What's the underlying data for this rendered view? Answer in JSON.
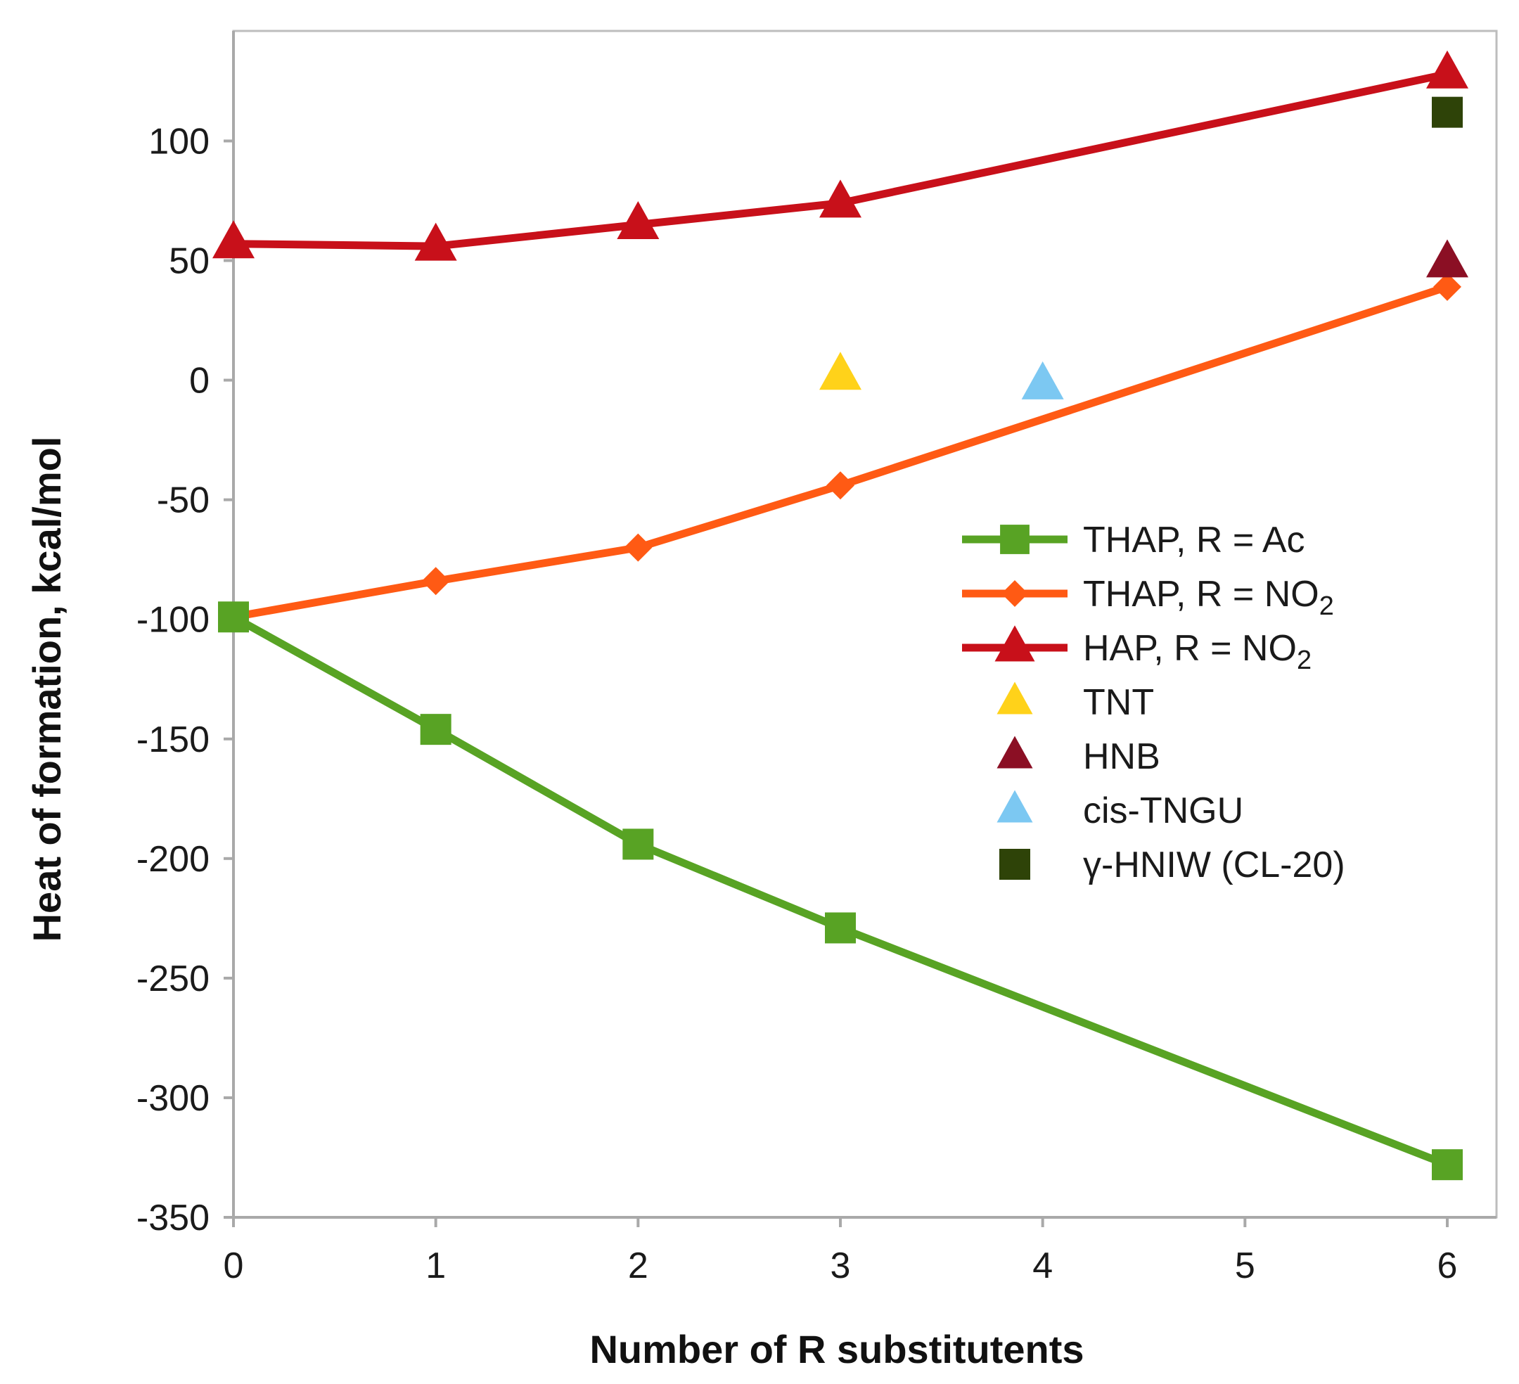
{
  "chart_data": {
    "type": "line",
    "title": "",
    "xlabel": "Number of R substitutents",
    "ylabel": "Heat of formation, kcal/mol",
    "xlim": [
      0,
      6.25
    ],
    "ylim": [
      -350,
      146
    ],
    "xticks": [
      "0",
      "1",
      "2",
      "3",
      "4",
      "5",
      "6"
    ],
    "yticks": [
      "100",
      "50",
      "0",
      "-50",
      "-100",
      "-150",
      "-200",
      "-250",
      "-300",
      "-350"
    ],
    "legend_position": "center-right",
    "grid": false,
    "series": [
      {
        "name": "THAP, R = Ac",
        "marker": "square",
        "line": true,
        "color": "#58A324",
        "points": [
          [
            0,
            -99
          ],
          [
            1,
            -146
          ],
          [
            2,
            -194
          ],
          [
            3,
            -229
          ],
          [
            6,
            -328
          ]
        ]
      },
      {
        "name": "THAP, R = NO2",
        "name_main": "THAP, R = NO",
        "name_sub": "2",
        "marker": "diamond",
        "line": true,
        "color": "#FF5A14",
        "points": [
          [
            0,
            -99
          ],
          [
            1,
            -84
          ],
          [
            2,
            -70
          ],
          [
            3,
            -44
          ],
          [
            6,
            39
          ]
        ]
      },
      {
        "name": "HAP, R = NO2",
        "name_main": "HAP, R = NO",
        "name_sub": "2",
        "marker": "triangle",
        "line": true,
        "color": "#C8101A",
        "points": [
          [
            0,
            57
          ],
          [
            1,
            56
          ],
          [
            2,
            65
          ],
          [
            3,
            74
          ],
          [
            6,
            128
          ]
        ]
      },
      {
        "name": "TNT",
        "marker": "triangle",
        "line": false,
        "color": "#FFD21A",
        "points": [
          [
            3,
            2
          ]
        ]
      },
      {
        "name": "HNB",
        "marker": "triangle",
        "line": false,
        "color": "#8B0F24",
        "points": [
          [
            6,
            49
          ]
        ]
      },
      {
        "name": "cis-TNGU",
        "marker": "triangle",
        "line": false,
        "color": "#7CC8F2",
        "points": [
          [
            4,
            -2
          ]
        ]
      },
      {
        "name": "γ-HNIW (CL-20)",
        "marker": "square",
        "line": false,
        "color": "#2E4308",
        "points": [
          [
            6,
            112
          ]
        ]
      }
    ]
  }
}
